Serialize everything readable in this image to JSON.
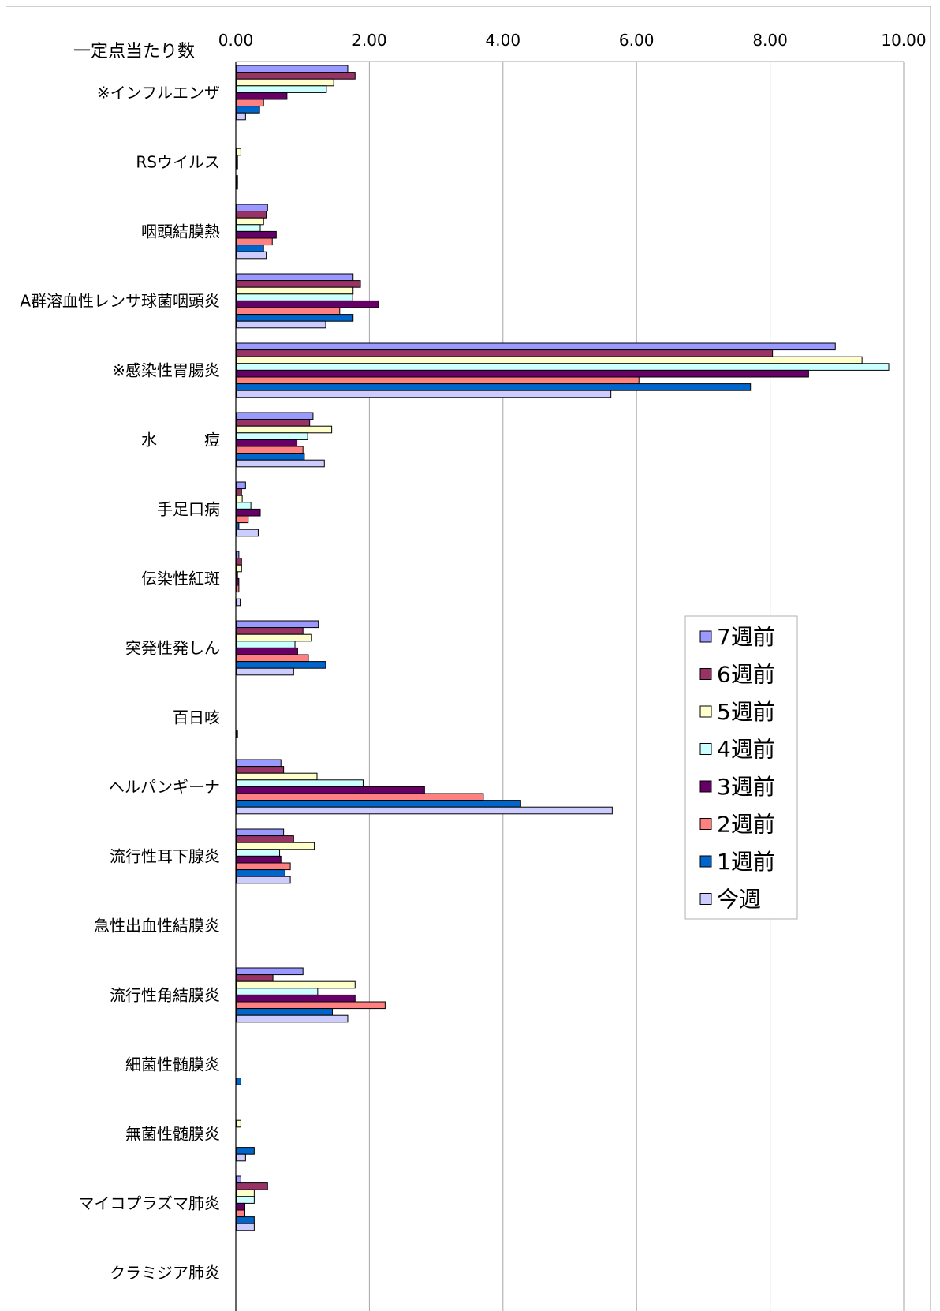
{
  "chart_data": {
    "type": "bar",
    "orientation": "horizontal",
    "title": "",
    "xlabel": "一定点当たり数",
    "ylabel": "",
    "xlim": [
      0,
      10
    ],
    "x_ticks": [
      "0.00",
      "2.00",
      "4.00",
      "6.00",
      "8.00",
      "10.00"
    ],
    "x_tick_values": [
      0,
      2,
      4,
      6,
      8,
      10
    ],
    "grid": "vertical",
    "legend_position": "right-middle",
    "categories": [
      "※インフルエンザ",
      "RSウイルス",
      "咽頭結膜熱",
      "A群溶血性レンサ球菌咽頭炎",
      "※感染性胃腸炎",
      "水　　　痘",
      "手足口病",
      "伝染性紅斑",
      "突発性発しん",
      "百日咳",
      "ヘルパンギーナ",
      "流行性耳下腺炎",
      "急性出血性結膜炎",
      "流行性角結膜炎",
      "細菌性髄膜炎",
      "無菌性髄膜炎",
      "マイコプラズマ肺炎",
      "クラミジア肺炎"
    ],
    "series": [
      {
        "name": "7週前",
        "color": "#9999ff",
        "values": [
          1.67,
          0.0,
          0.47,
          1.75,
          8.97,
          1.15,
          0.14,
          0.04,
          1.23,
          0.0,
          0.67,
          0.71,
          0.0,
          1.0,
          0.0,
          0.0,
          0.07,
          0.0
        ]
      },
      {
        "name": "6週前",
        "color": "#993366",
        "values": [
          1.78,
          0.0,
          0.45,
          1.86,
          8.03,
          1.1,
          0.08,
          0.08,
          1.0,
          0.0,
          0.71,
          0.86,
          0.0,
          0.55,
          0.0,
          0.0,
          0.47,
          0.0
        ]
      },
      {
        "name": "5週前",
        "color": "#ffffcc",
        "values": [
          1.46,
          0.07,
          0.41,
          1.75,
          9.37,
          1.43,
          0.09,
          0.08,
          1.13,
          0.0,
          1.21,
          1.17,
          0.0,
          1.78,
          0.0,
          0.07,
          0.27,
          0.0
        ]
      },
      {
        "name": "4週前",
        "color": "#ccffff",
        "values": [
          1.35,
          0.02,
          0.36,
          1.74,
          9.77,
          1.07,
          0.22,
          0.02,
          0.88,
          0.0,
          1.9,
          0.65,
          0.0,
          1.22,
          0.0,
          0.0,
          0.27,
          0.0
        ]
      },
      {
        "name": "3週前",
        "color": "#660066",
        "values": [
          0.76,
          0.02,
          0.6,
          2.13,
          8.57,
          0.91,
          0.36,
          0.04,
          0.92,
          0.0,
          2.82,
          0.67,
          0.0,
          1.78,
          0.0,
          0.0,
          0.13,
          0.0
        ]
      },
      {
        "name": "2週前",
        "color": "#ff8080",
        "values": [
          0.41,
          0.0,
          0.54,
          1.55,
          6.03,
          1.0,
          0.18,
          0.04,
          1.08,
          0.0,
          3.7,
          0.81,
          0.0,
          2.23,
          0.0,
          0.0,
          0.13,
          0.0
        ]
      },
      {
        "name": "1週前",
        "color": "#0066cc",
        "values": [
          0.35,
          0.02,
          0.41,
          1.75,
          7.7,
          1.02,
          0.04,
          0.0,
          1.34,
          0.02,
          4.26,
          0.73,
          0.0,
          1.44,
          0.07,
          0.27,
          0.27,
          0.0
        ]
      },
      {
        "name": "今週",
        "color": "#ccccff",
        "values": [
          0.14,
          0.02,
          0.45,
          1.34,
          5.61,
          1.32,
          0.33,
          0.06,
          0.86,
          0.0,
          5.63,
          0.81,
          0.0,
          1.67,
          0.0,
          0.14,
          0.27,
          0.0
        ]
      }
    ]
  }
}
